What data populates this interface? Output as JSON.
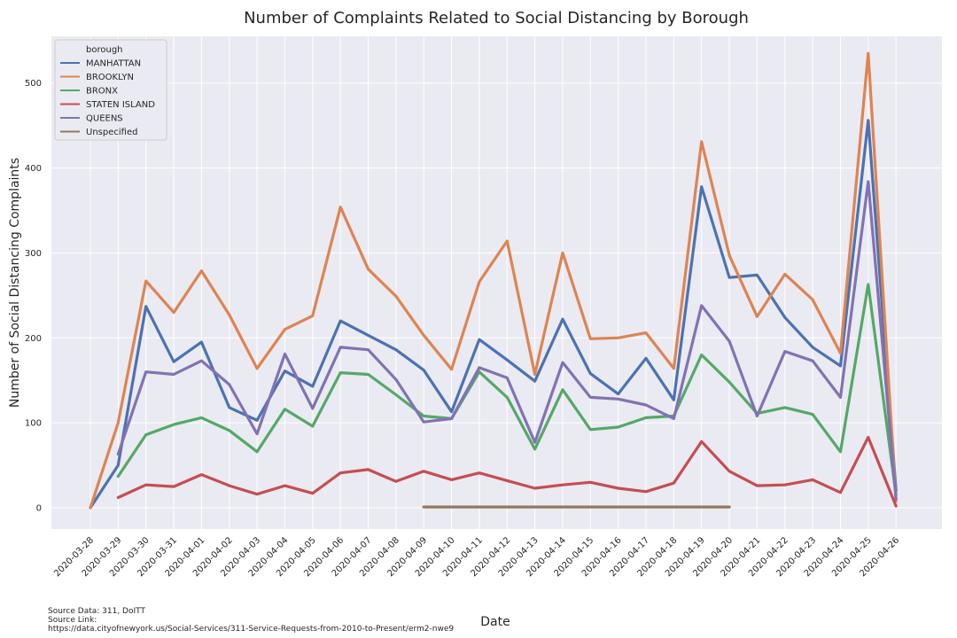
{
  "chart_data": {
    "type": "line",
    "title": "Number of Complaints Related to Social Distancing by Borough",
    "xlabel": "Date",
    "ylabel": "Number of Social Distancing Complaints",
    "ylim": [
      -25,
      555
    ],
    "yticks": [
      0,
      100,
      200,
      300,
      400,
      500
    ],
    "grid": true,
    "legend_title": "borough",
    "legend_position": "top-left",
    "categories": [
      "2020-03-28",
      "2020-03-29",
      "2020-03-30",
      "2020-03-31",
      "2020-04-01",
      "2020-04-02",
      "2020-04-03",
      "2020-04-04",
      "2020-04-05",
      "2020-04-06",
      "2020-04-07",
      "2020-04-08",
      "2020-04-09",
      "2020-04-10",
      "2020-04-11",
      "2020-04-12",
      "2020-04-13",
      "2020-04-14",
      "2020-04-15",
      "2020-04-16",
      "2020-04-17",
      "2020-04-18",
      "2020-04-19",
      "2020-04-20",
      "2020-04-21",
      "2020-04-22",
      "2020-04-23",
      "2020-04-24",
      "2020-04-25",
      "2020-04-26"
    ],
    "series": [
      {
        "name": "MANHATTAN",
        "color": "#4c72b0",
        "values": [
          0,
          50,
          237,
          172,
          195,
          118,
          103,
          161,
          143,
          220,
          203,
          186,
          162,
          113,
          198,
          174,
          149,
          222,
          158,
          134,
          176,
          127,
          378,
          271,
          274,
          224,
          189,
          167,
          456,
          20
        ]
      },
      {
        "name": "BROOKLYN",
        "color": "#dd8452",
        "values": [
          0,
          100,
          267,
          230,
          279,
          227,
          164,
          210,
          226,
          354,
          281,
          249,
          203,
          163,
          266,
          314,
          157,
          300,
          199,
          200,
          206,
          164,
          431,
          297,
          225,
          275,
          245,
          182,
          535,
          8
        ]
      },
      {
        "name": "BRONX",
        "color": "#55a868",
        "values": [
          null,
          37,
          86,
          98,
          106,
          91,
          66,
          116,
          96,
          159,
          157,
          133,
          108,
          105,
          160,
          130,
          69,
          139,
          92,
          95,
          106,
          108,
          180,
          148,
          111,
          118,
          110,
          66,
          263,
          15
        ]
      },
      {
        "name": "STATEN ISLAND",
        "color": "#c44e52",
        "values": [
          null,
          12,
          27,
          25,
          39,
          26,
          16,
          26,
          17,
          41,
          45,
          31,
          43,
          33,
          41,
          32,
          23,
          27,
          30,
          23,
          19,
          29,
          78,
          43,
          26,
          27,
          33,
          18,
          83,
          2
        ]
      },
      {
        "name": "QUEENS",
        "color": "#8172b3",
        "values": [
          null,
          63,
          160,
          157,
          173,
          145,
          87,
          181,
          117,
          189,
          186,
          151,
          101,
          105,
          165,
          153,
          77,
          171,
          130,
          128,
          121,
          105,
          238,
          196,
          108,
          184,
          173,
          130,
          384,
          10
        ]
      },
      {
        "name": "Unspecified",
        "color": "#937860",
        "values": [
          null,
          null,
          null,
          null,
          null,
          null,
          null,
          null,
          null,
          null,
          null,
          null,
          1,
          1,
          1,
          1,
          1,
          1,
          1,
          1,
          1,
          1,
          1,
          1,
          null,
          null,
          null,
          null,
          null,
          null
        ]
      }
    ]
  },
  "source": {
    "line1": "Source Data: 311, DoITT",
    "line2": "Source Link:",
    "line3": "https://data.cityofnewyork.us/Social-Services/311-Service-Requests-from-2010-to-Present/erm2-nwe9"
  }
}
